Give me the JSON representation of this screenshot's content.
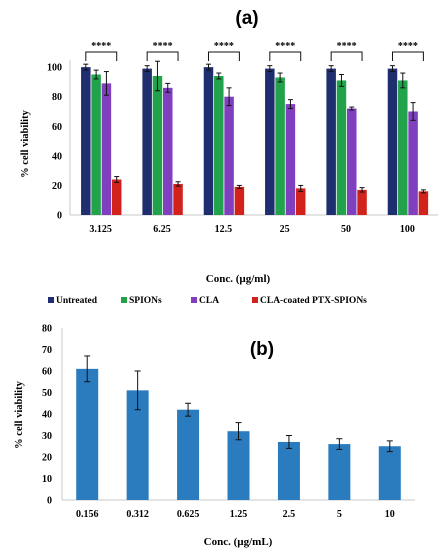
{
  "chart_data": [
    {
      "panel": "(a)",
      "type": "bar",
      "categories": [
        "3.125",
        "6.25",
        "12.5",
        "25",
        "50",
        "100"
      ],
      "series": [
        {
          "name": "Untreated",
          "color": "#1f2e6e",
          "values": [
            100,
            99,
            100,
            99,
            99,
            99
          ],
          "errors": [
            2,
            2,
            2,
            2,
            2,
            2
          ]
        },
        {
          "name": "SPIONs",
          "color": "#22a24a",
          "values": [
            95,
            94,
            94,
            93,
            91,
            91
          ],
          "errors": [
            3,
            10,
            2,
            3,
            4,
            5
          ]
        },
        {
          "name": "CLA",
          "color": "#7f3fbf",
          "values": [
            89,
            86,
            80,
            75,
            72,
            70
          ],
          "errors": [
            8,
            3,
            6,
            3,
            1,
            6
          ]
        },
        {
          "name": "CLA-coated PTX-SPIONs",
          "color": "#d2221c",
          "values": [
            24,
            21,
            19,
            18,
            17,
            16
          ],
          "errors": [
            2,
            1.5,
            1,
            2,
            1.5,
            1
          ]
        }
      ],
      "significance": [
        "****",
        "****",
        "****",
        "****",
        "****",
        "****"
      ],
      "xlabel": "Conc. (µg/ml)",
      "ylabel": "% cell viability",
      "ylim": [
        0,
        100
      ],
      "yticks": [
        "0",
        "20",
        "40",
        "60",
        "80",
        "100"
      ],
      "grid": false,
      "legend_position": "bottom"
    },
    {
      "panel": "(b)",
      "type": "bar",
      "categories": [
        "0.156",
        "0.312",
        "0.625",
        "1.25",
        "2.5",
        "5",
        "10"
      ],
      "series": [
        {
          "color": "#2b7bbf",
          "values": [
            61,
            51,
            42,
            32,
            27,
            26,
            25
          ],
          "errors": [
            6,
            9,
            3,
            4,
            3,
            2.5,
            2.5
          ]
        }
      ],
      "xlabel": "Conc. (µg/mL)",
      "ylabel": "% cell viability",
      "ylim": [
        0,
        80
      ],
      "yticks": [
        "0",
        "10",
        "20",
        "30",
        "40",
        "50",
        "60",
        "70",
        "80"
      ],
      "grid": false
    }
  ]
}
